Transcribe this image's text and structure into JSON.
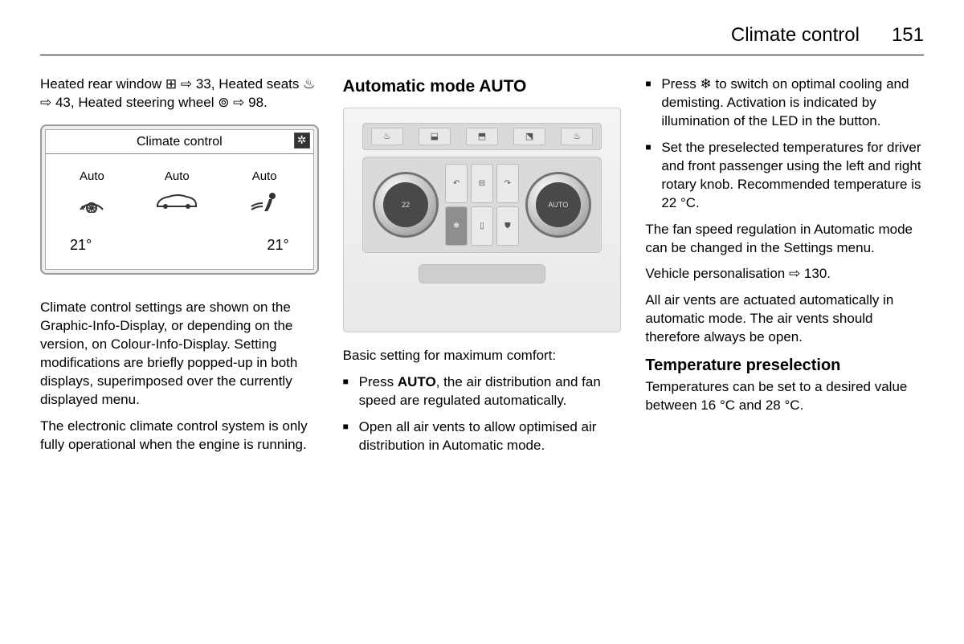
{
  "header": {
    "title": "Climate control",
    "page": "151"
  },
  "col1": {
    "intro_line": "Heated rear window ⊞ ⇨ 33, Heated seats ♨ ⇨ 43, Heated steering wheel ⊚ ⇨ 98.",
    "display": {
      "title": "Climate control",
      "items": [
        {
          "label": "Auto",
          "icon": "❋"
        },
        {
          "label": "Auto",
          "icon": "🚗"
        },
        {
          "label": "Auto",
          "icon": "〰"
        }
      ],
      "temp_left": "21°",
      "temp_right": "21°"
    },
    "para1": "Climate control settings are shown on the Graphic-Info-Display, or depending on the version, on Colour-Info-Display. Setting modifications are briefly popped-up in both displays, superimposed over the currently displayed menu.",
    "para2": "The electronic climate control system is only fully operational when the engine is running."
  },
  "col2": {
    "heading": "Automatic mode AUTO",
    "panel": {
      "top_buttons": [
        "♨",
        "⬓",
        "⬒",
        "⬔",
        "♨"
      ],
      "center_buttons": [
        "↶",
        "⊟",
        "↷",
        "❄",
        "▯",
        "⛊"
      ],
      "dial_left": "22",
      "dial_right": "AUTO"
    },
    "caption": "Basic setting for maximum comfort:",
    "bullets": [
      "Press <b>AUTO</b>, the air distribution and fan speed are regulated automatically.",
      "Open all air vents to allow optimised air distribution in Automatic mode."
    ]
  },
  "col3": {
    "bullets": [
      "Press ❄ to switch on optimal cooling and demisting. Activation is indicated by illumination of the LED in the button.",
      "Set the preselected temperatures for driver and front passenger using the left and right rotary knob. Recommended temperature is 22 °C."
    ],
    "para1": "The fan speed regulation in Automatic mode can be changed in the Settings menu.",
    "para2": "Vehicle personalisation ⇨ 130.",
    "para3": "All air vents are actuated automatically in automatic mode. The air vents should therefore always be open.",
    "sub_heading": "Temperature preselection",
    "para4": "Temperatures can be set to a desired value between 16 °C and 28 °C."
  }
}
